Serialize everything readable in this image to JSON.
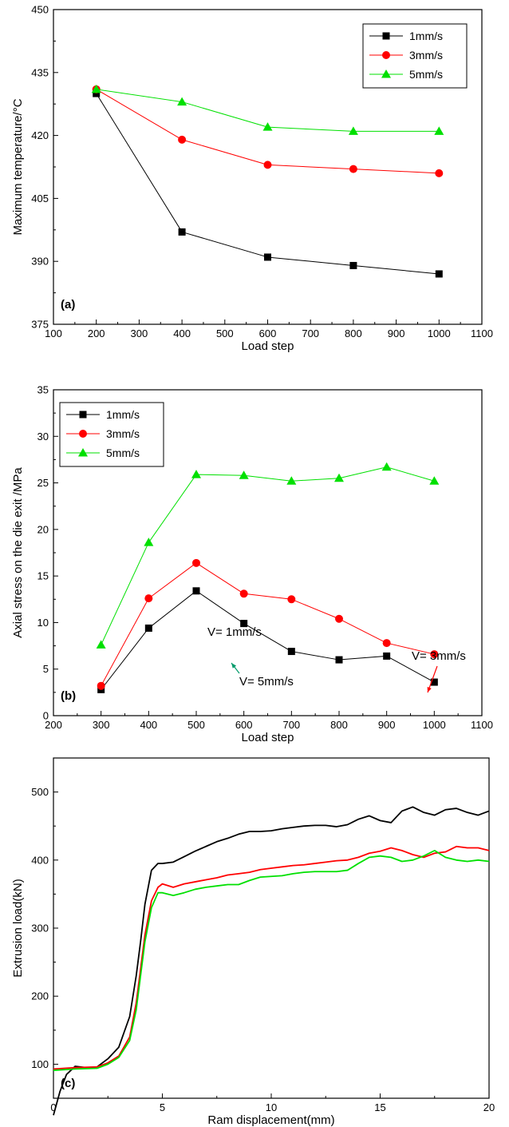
{
  "chart_data": [
    {
      "type": "line",
      "panel_label": "(a)",
      "xlabel": "Load step",
      "ylabel": "Maximum temperature/°C",
      "xlim": [
        100,
        1100
      ],
      "ylim": [
        375,
        450
      ],
      "xticks": [
        100,
        200,
        300,
        400,
        500,
        600,
        700,
        800,
        900,
        1000,
        1100
      ],
      "yticks": [
        375,
        390,
        405,
        420,
        435,
        450
      ],
      "grid": false,
      "legend": "top-right",
      "x": [
        200,
        400,
        600,
        800,
        1000
      ],
      "series": [
        {
          "name": "1mm/s",
          "color": "#000000",
          "marker": "square",
          "values": [
            430,
            397,
            391,
            389,
            387
          ]
        },
        {
          "name": "3mm/s",
          "color": "#ff0000",
          "marker": "circle",
          "values": [
            431,
            419,
            413,
            412,
            411
          ]
        },
        {
          "name": "5mm/s",
          "color": "#00e000",
          "marker": "triangle",
          "values": [
            431,
            428,
            422,
            421,
            421
          ]
        }
      ]
    },
    {
      "type": "line",
      "panel_label": "(b)",
      "xlabel": "Load step",
      "ylabel": "Axial stress on the die exit /MPa",
      "xlim": [
        200,
        1100
      ],
      "ylim": [
        0,
        35
      ],
      "xticks": [
        200,
        300,
        400,
        500,
        600,
        700,
        800,
        900,
        1000,
        1100
      ],
      "yticks": [
        0,
        5,
        10,
        15,
        20,
        25,
        30,
        35
      ],
      "grid": false,
      "legend": "top-left",
      "x": [
        300,
        400,
        500,
        600,
        700,
        800,
        900,
        1000
      ],
      "series": [
        {
          "name": "1mm/s",
          "color": "#000000",
          "marker": "square",
          "values": [
            2.8,
            9.4,
            13.4,
            9.9,
            6.9,
            6.0,
            6.4,
            3.6
          ]
        },
        {
          "name": "3mm/s",
          "color": "#ff0000",
          "marker": "circle",
          "values": [
            3.2,
            12.6,
            16.4,
            13.1,
            12.5,
            10.4,
            7.8,
            6.6
          ]
        },
        {
          "name": "5mm/s",
          "color": "#00e000",
          "marker": "triangle",
          "values": [
            7.6,
            18.6,
            25.9,
            25.8,
            25.2,
            25.5,
            26.7,
            25.2
          ]
        }
      ]
    },
    {
      "type": "line",
      "panel_label": "(c)",
      "xlabel": "Ram displacement(mm)",
      "ylabel": "Extrusion load(kN)",
      "xlim": [
        0,
        20
      ],
      "ylim": [
        50,
        550
      ],
      "xticks": [
        0,
        5,
        10,
        15,
        20
      ],
      "yticks": [
        100,
        200,
        300,
        400,
        500
      ],
      "grid": false,
      "series": [
        {
          "name": "V= 1mm/s",
          "color": "#000000",
          "x": [
            0,
            0.3,
            0.6,
            1.0,
            1.5,
            2.0,
            2.5,
            3.0,
            3.5,
            3.8,
            4.0,
            4.2,
            4.5,
            4.8,
            5.0,
            5.5,
            6.0,
            6.5,
            7.0,
            7.5,
            8.0,
            8.5,
            9.0,
            9.5,
            10.0,
            10.5,
            11.0,
            11.5,
            12.0,
            12.5,
            13.0,
            13.5,
            14.0,
            14.5,
            15.0,
            15.5,
            16.0,
            16.5,
            17.0,
            17.5,
            18.0,
            18.5,
            19.0,
            19.5,
            20.0
          ],
          "values": [
            25,
            60,
            85,
            97,
            95,
            96,
            108,
            125,
            170,
            230,
            280,
            335,
            385,
            395,
            395,
            397,
            405,
            413,
            420,
            427,
            432,
            438,
            442,
            442,
            443,
            446,
            448,
            450,
            451,
            451,
            449,
            452,
            460,
            465,
            458,
            455,
            472,
            478,
            470,
            466,
            474,
            476,
            470,
            466,
            472
          ]
        },
        {
          "name": "V= 3mm/s",
          "color": "#ff0000",
          "x": [
            0,
            1.0,
            2.0,
            2.5,
            3.0,
            3.5,
            3.8,
            4.0,
            4.2,
            4.5,
            4.8,
            5.0,
            5.5,
            6.0,
            6.5,
            7.0,
            7.5,
            8.0,
            8.5,
            9.0,
            9.5,
            10.0,
            10.5,
            11.0,
            11.5,
            12.0,
            12.5,
            13.0,
            13.5,
            14.0,
            14.5,
            15.0,
            15.5,
            16.0,
            16.5,
            17.0,
            17.5,
            18.0,
            18.5,
            19.0,
            19.5,
            20.0
          ],
          "values": [
            93,
            95,
            96,
            102,
            112,
            140,
            190,
            240,
            290,
            340,
            360,
            365,
            360,
            365,
            368,
            371,
            374,
            378,
            380,
            382,
            386,
            388,
            390,
            392,
            393,
            395,
            397,
            399,
            400,
            404,
            410,
            413,
            418,
            414,
            408,
            404,
            410,
            412,
            420,
            418,
            418,
            414
          ]
        },
        {
          "name": "V= 5mm/s",
          "color": "#00e000",
          "x": [
            0,
            1.0,
            2.0,
            2.5,
            3.0,
            3.5,
            3.8,
            4.0,
            4.2,
            4.5,
            4.8,
            5.0,
            5.5,
            6.0,
            6.5,
            7.0,
            7.5,
            8.0,
            8.5,
            9.0,
            9.5,
            10.0,
            10.5,
            11.0,
            11.5,
            12.0,
            12.5,
            13.0,
            13.5,
            14.0,
            14.5,
            15.0,
            15.5,
            16.0,
            16.5,
            17.0,
            17.5,
            18.0,
            18.5,
            19.0,
            19.5,
            20.0
          ],
          "values": [
            91,
            93,
            94,
            100,
            110,
            135,
            180,
            230,
            280,
            330,
            352,
            352,
            348,
            352,
            357,
            360,
            362,
            364,
            364,
            370,
            375,
            376,
            377,
            380,
            382,
            383,
            383,
            383,
            385,
            395,
            404,
            406,
            404,
            398,
            400,
            406,
            414,
            404,
            400,
            398,
            400,
            398
          ]
        }
      ],
      "annotations": [
        {
          "text": "V= 1mm/s",
          "series": 0
        },
        {
          "text": "V= 3mm/s",
          "series": 1
        },
        {
          "text": "V= 5mm/s",
          "series": 2
        }
      ]
    }
  ]
}
